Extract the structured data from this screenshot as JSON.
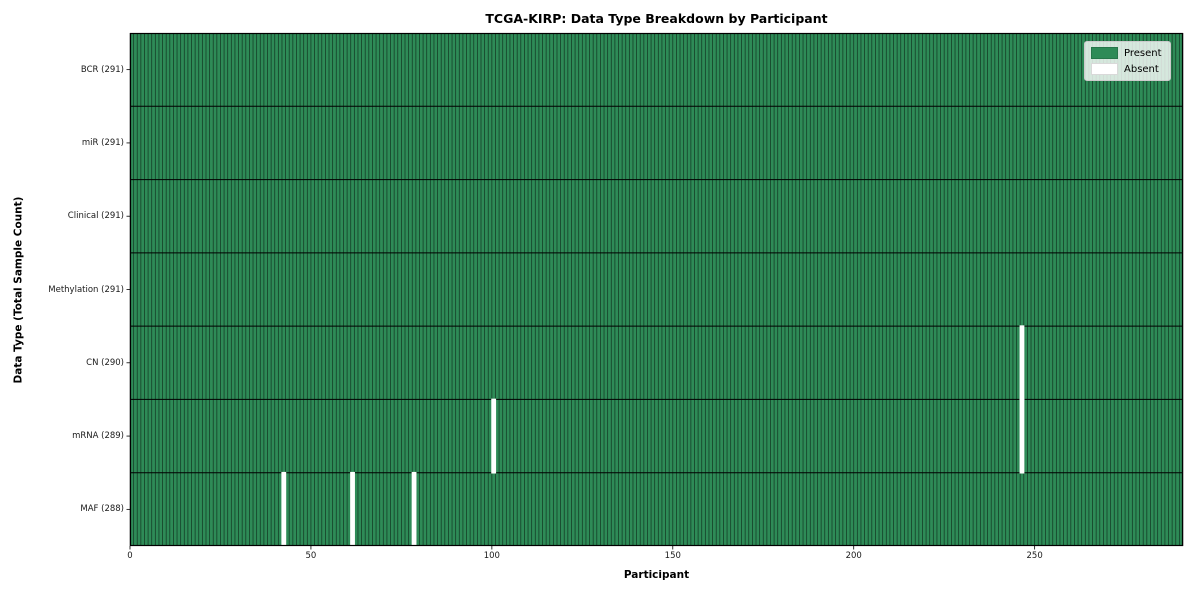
{
  "chart_data": {
    "type": "heatmap",
    "title": "TCGA-KIRP: Data Type Breakdown by Participant",
    "xlabel": "Participant",
    "ylabel": "Data Type (Total Sample Count)",
    "n_participants": 291,
    "xlim": [
      0,
      291
    ],
    "x_ticks": [
      0,
      50,
      100,
      150,
      200,
      250
    ],
    "grid": false,
    "legend_position": "upper right",
    "colors": {
      "present": "#2e8b57",
      "absent": "#ffffff",
      "cell_edge": "rgba(0,0,0,0.55)",
      "row_divider": "#000000",
      "plot_border": "#000000"
    },
    "rows": [
      {
        "name": "BCR",
        "label": "BCR (291)",
        "count": 291,
        "absent_participants": []
      },
      {
        "name": "miR",
        "label": "miR (291)",
        "count": 291,
        "absent_participants": []
      },
      {
        "name": "Clinical",
        "label": "Clinical (291)",
        "count": 291,
        "absent_participants": []
      },
      {
        "name": "Methylation",
        "label": "Methylation (291)",
        "count": 291,
        "absent_participants": []
      },
      {
        "name": "CN",
        "label": "CN (290)",
        "count": 290,
        "absent_participants": [
          246
        ]
      },
      {
        "name": "mRNA",
        "label": "mRNA (289)",
        "count": 289,
        "absent_participants": [
          100,
          246
        ]
      },
      {
        "name": "MAF",
        "label": "MAF (288)",
        "count": 288,
        "absent_participants": [
          42,
          61,
          78
        ]
      }
    ],
    "legend_entries": [
      {
        "label": "Present",
        "color": "#2e8b57"
      },
      {
        "label": "Absent",
        "color": "#ffffff"
      }
    ]
  }
}
